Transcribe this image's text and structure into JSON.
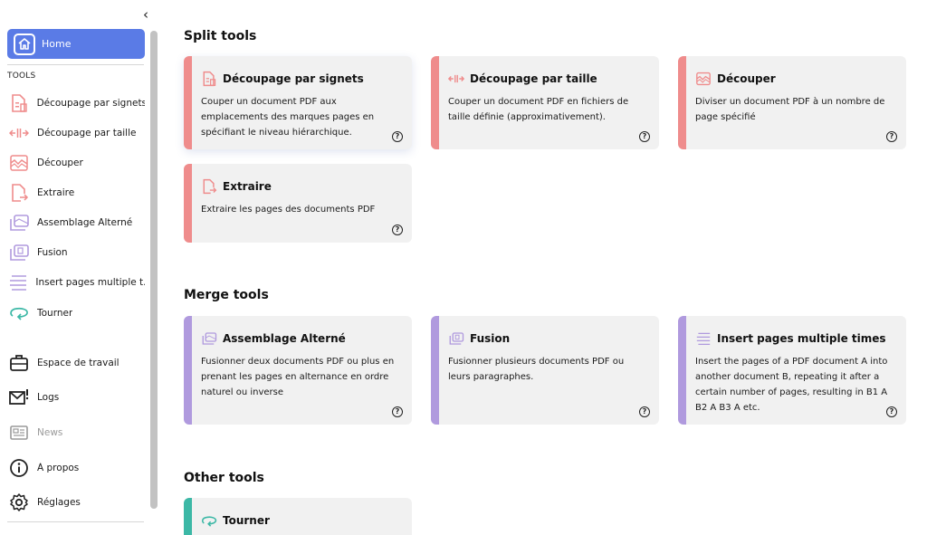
{
  "sidebar": {
    "collapse_glyph": "‹",
    "home_label": "Home",
    "tools_heading": "TOOLS",
    "tools": [
      {
        "label": "Découpage par signets",
        "icon": "bookmark-split-icon"
      },
      {
        "label": "Découpage par taille",
        "icon": "size-split-icon"
      },
      {
        "label": "Découper",
        "icon": "split-wave-icon"
      },
      {
        "label": "Extraire",
        "icon": "extract-icon"
      },
      {
        "label": "Assemblage Alterné",
        "icon": "alternate-mix-icon"
      },
      {
        "label": "Fusion",
        "icon": "merge-icon"
      },
      {
        "label": "Insert pages multiple t...",
        "icon": "insert-multiple-icon"
      },
      {
        "label": "Tourner",
        "icon": "rotate-icon"
      }
    ],
    "footer": [
      {
        "label": "Espace de travail",
        "icon": "workspace-icon"
      },
      {
        "label": "Logs",
        "icon": "logs-icon"
      },
      {
        "label": "News",
        "icon": "news-icon"
      },
      {
        "label": "À propos",
        "icon": "info-icon"
      },
      {
        "label": "Réglages",
        "icon": "settings-icon"
      }
    ]
  },
  "sections": {
    "split_title": "Split tools",
    "merge_title": "Merge tools",
    "other_title": "Other tools"
  },
  "cards": {
    "bookmarks": {
      "title": "Découpage par signets",
      "desc": "Couper un document PDF aux emplacements des marques pages en spécifiant le niveau hiérarchique."
    },
    "size": {
      "title": "Découpage par taille",
      "desc": "Couper un document PDF en fichiers de taille définie (approximativement)."
    },
    "split": {
      "title": "Découper",
      "desc": "Diviser un document PDF à un nombre de page spécifié"
    },
    "extract": {
      "title": "Extraire",
      "desc": "Extraire les pages des documents PDF"
    },
    "alternate": {
      "title": "Assemblage Alterné",
      "desc": "Fusionner deux documents PDF ou plus en prenant les pages en alternance en ordre naturel ou inverse"
    },
    "merge": {
      "title": "Fusion",
      "desc": "Fusionner plusieurs documents PDF ou leurs paragraphes."
    },
    "insert": {
      "title": "Insert pages multiple times",
      "desc": "Insert the pages of a PDF document A into another document B, repeating it after a certain number of pages, resulting in B1 A B2 A B3 A etc."
    },
    "rotate": {
      "title": "Tourner",
      "desc": ""
    }
  },
  "help_glyph": "?",
  "colors": {
    "accent": "#5a7be6",
    "split": "#ef8c8c",
    "merge": "#b09ade",
    "other": "#3cb8a6"
  }
}
